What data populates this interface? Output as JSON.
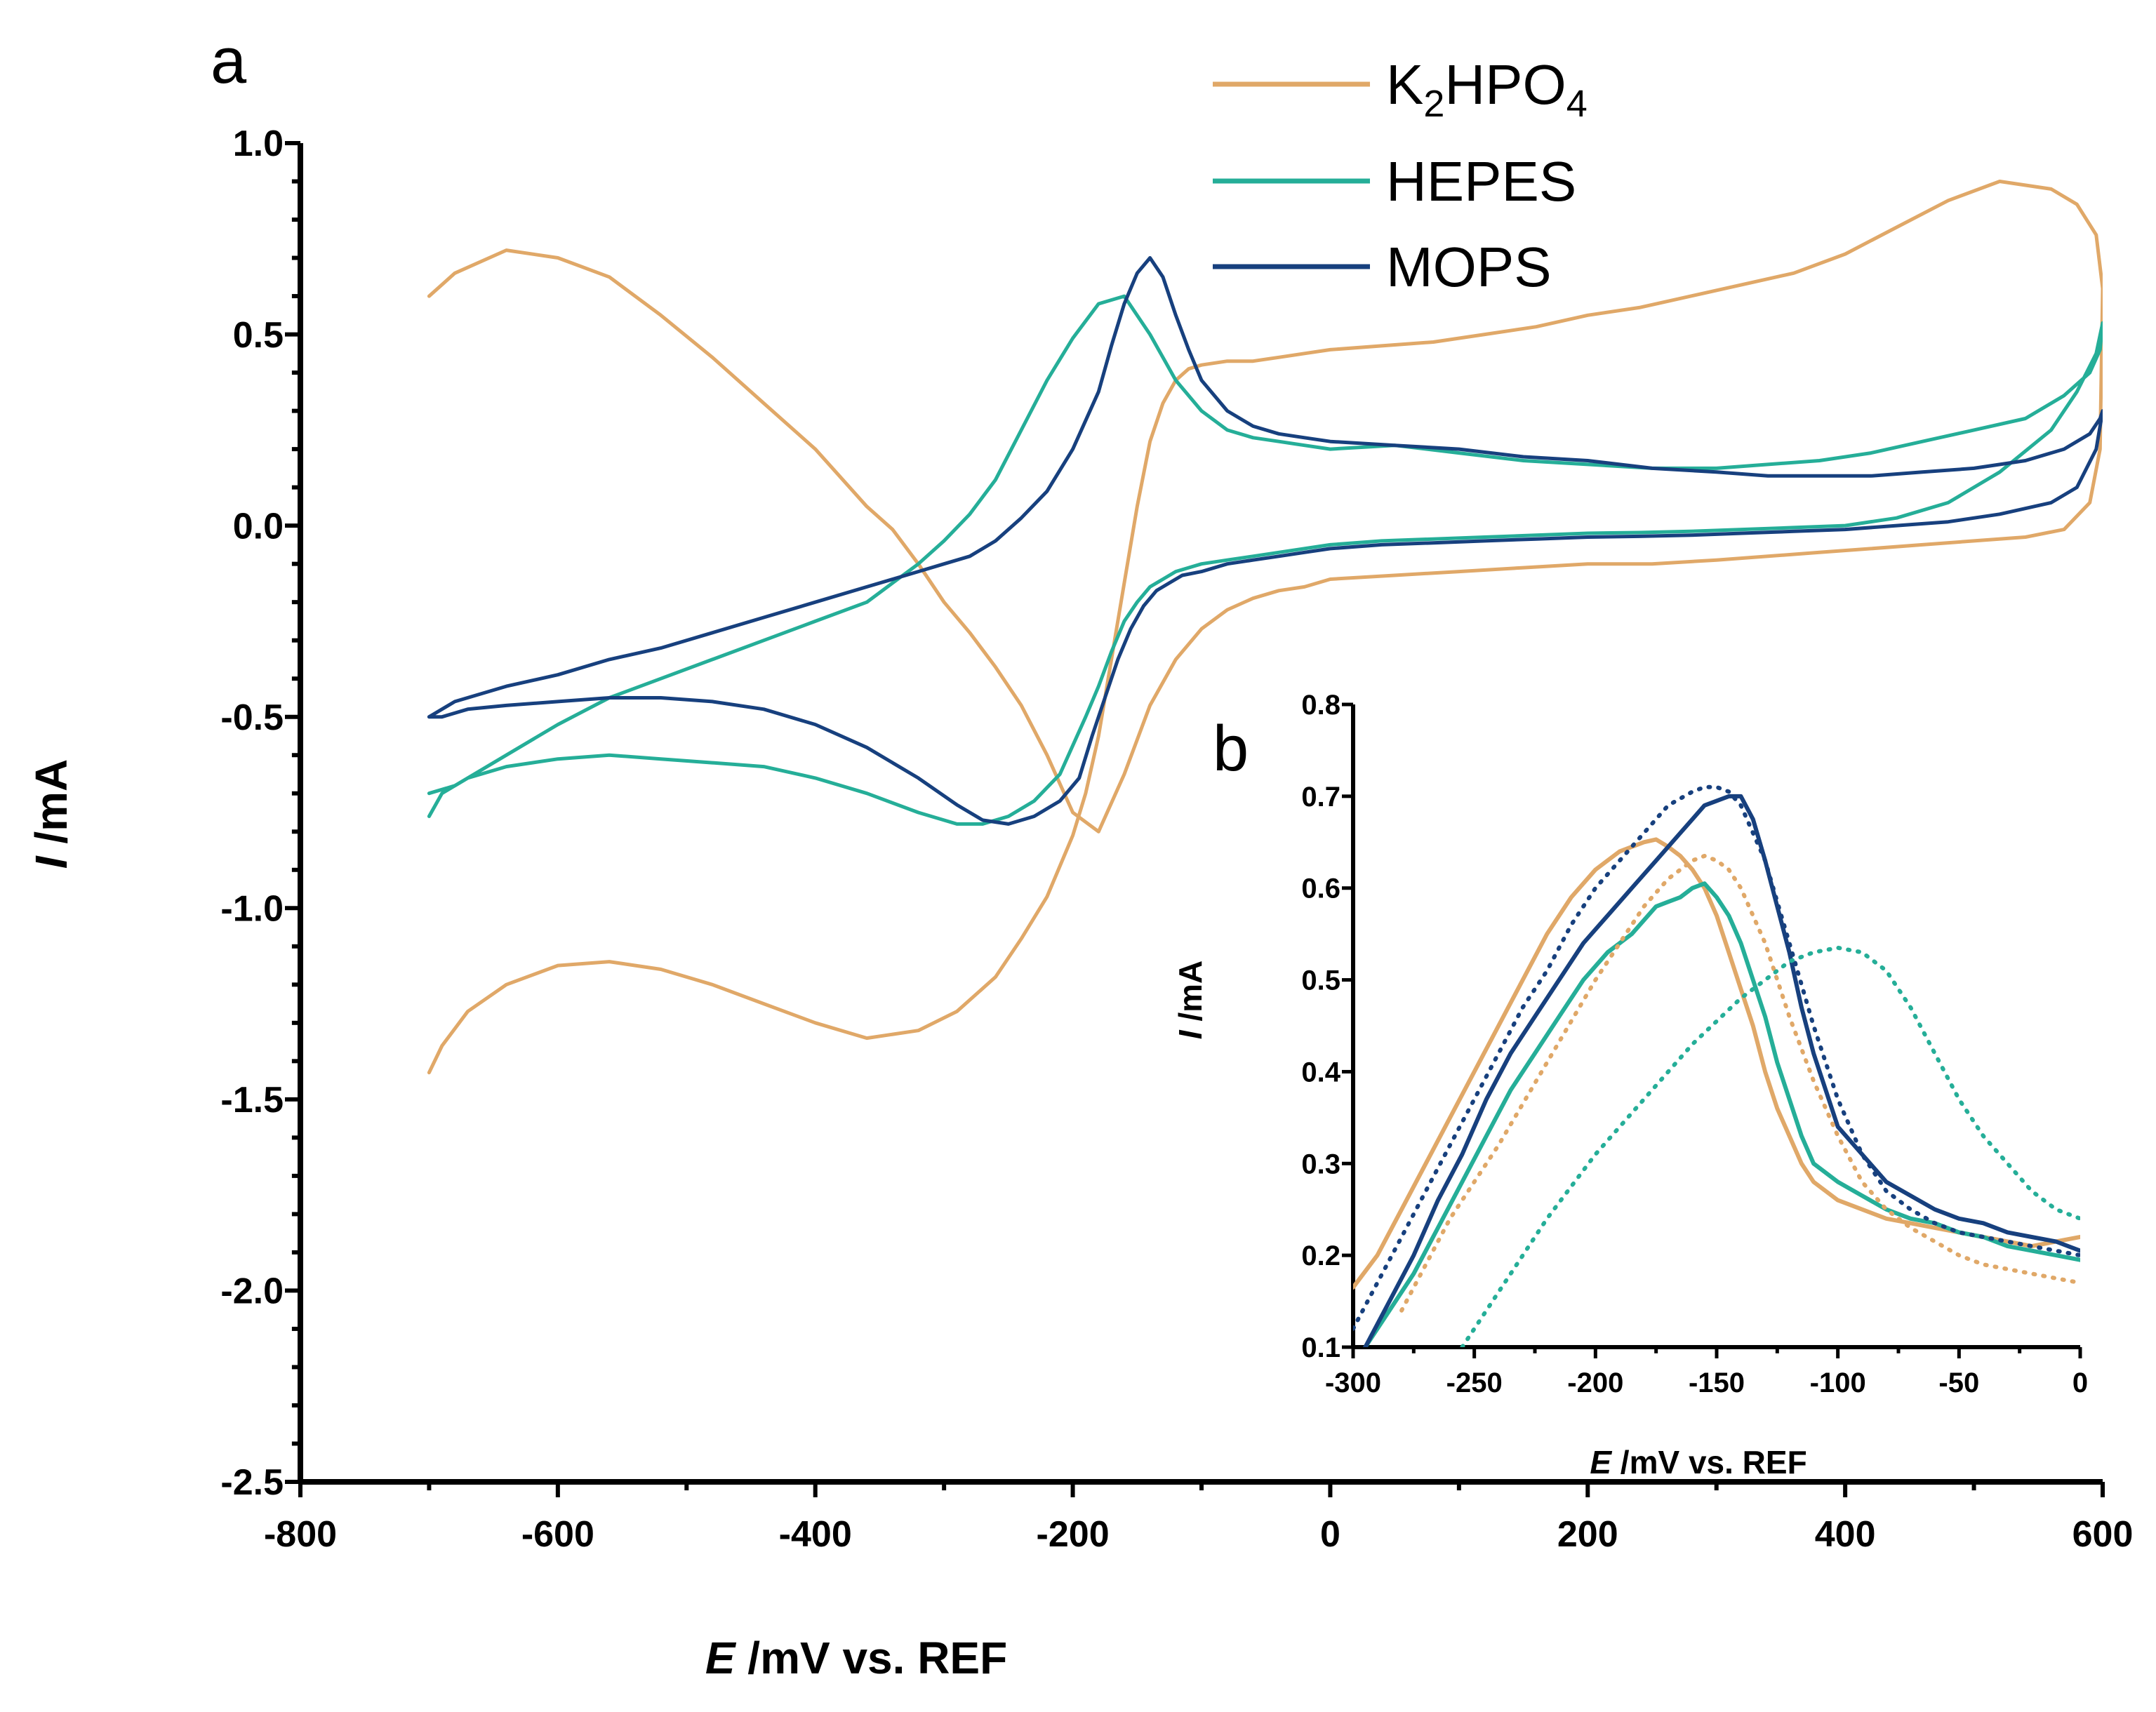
{
  "chart_data": [
    {
      "panel": "a",
      "type": "line",
      "xlabel_italic": "E",
      "xlabel_rest": " /mV vs. REF",
      "ylabel_italic": "I",
      "ylabel_rest": " /mA",
      "xlim": [
        -800,
        600
      ],
      "ylim": [
        -2.5,
        1.0
      ],
      "xticks": [
        "-800",
        "-600",
        "-400",
        "-200",
        "0",
        "200",
        "400",
        "600"
      ],
      "yticks": [
        "1.0",
        "0.5",
        "0.0",
        "-0.5",
        "-1.0",
        "-1.5",
        "-2.0",
        "-2.5"
      ],
      "legend_position": "top-right",
      "legend": [
        {
          "main": "K",
          "sub1": "2",
          "mid": "HPO",
          "sub2": "4"
        },
        {
          "main": "HEPES"
        },
        {
          "main": "MOPS"
        }
      ],
      "series": [
        {
          "name": "K2HPO4",
          "color": "#E0A868",
          "x": [
            -700,
            -690,
            -670,
            -640,
            -600,
            -560,
            -520,
            -480,
            -440,
            -400,
            -360,
            -320,
            -290,
            -260,
            -240,
            -220,
            -200,
            -190,
            -180,
            -170,
            -160,
            -150,
            -140,
            -130,
            -120,
            -110,
            -100,
            -80,
            -60,
            -40,
            -20,
            0,
            40,
            80,
            120,
            160,
            200,
            240,
            280,
            320,
            360,
            400,
            440,
            480,
            520,
            560,
            580,
            595,
            600,
            598,
            590,
            570,
            540,
            500,
            460,
            420,
            380,
            340,
            300,
            250,
            200,
            150,
            100,
            50,
            0,
            -20,
            -40,
            -60,
            -80,
            -100,
            -120,
            -140,
            -160,
            -180,
            -200,
            -220,
            -240,
            -260,
            -280,
            -300,
            -320,
            -340,
            -360,
            -400,
            -440,
            -480,
            -520,
            -560,
            -600,
            -640,
            -680,
            -700
          ],
          "y": [
            -1.43,
            -1.36,
            -1.27,
            -1.2,
            -1.15,
            -1.14,
            -1.16,
            -1.2,
            -1.25,
            -1.3,
            -1.34,
            -1.32,
            -1.27,
            -1.18,
            -1.08,
            -0.97,
            -0.81,
            -0.7,
            -0.55,
            -0.35,
            -0.15,
            0.05,
            0.22,
            0.32,
            0.38,
            0.41,
            0.42,
            0.43,
            0.43,
            0.44,
            0.45,
            0.46,
            0.47,
            0.48,
            0.5,
            0.52,
            0.55,
            0.57,
            0.6,
            0.63,
            0.66,
            0.71,
            0.78,
            0.85,
            0.9,
            0.88,
            0.84,
            0.76,
            0.62,
            0.2,
            0.06,
            -0.01,
            -0.03,
            -0.04,
            -0.05,
            -0.06,
            -0.07,
            -0.08,
            -0.09,
            -0.1,
            -0.1,
            -0.11,
            -0.12,
            -0.13,
            -0.14,
            -0.16,
            -0.17,
            -0.19,
            -0.22,
            -0.27,
            -0.35,
            -0.47,
            -0.65,
            -0.8,
            -0.75,
            -0.6,
            -0.47,
            -0.37,
            -0.28,
            -0.2,
            -0.1,
            -0.01,
            0.05,
            0.2,
            0.32,
            0.44,
            0.55,
            0.65,
            0.7,
            0.72,
            0.66,
            0.6
          ]
        },
        {
          "name": "HEPES",
          "color": "#25AE98",
          "x": [
            -700,
            -690,
            -670,
            -640,
            -600,
            -560,
            -520,
            -480,
            -440,
            -400,
            -360,
            -320,
            -290,
            -270,
            -250,
            -230,
            -210,
            -190,
            -180,
            -170,
            -160,
            -150,
            -140,
            -130,
            -120,
            -110,
            -100,
            -80,
            -60,
            -40,
            -20,
            0,
            40,
            80,
            120,
            160,
            200,
            240,
            280,
            320,
            360,
            400,
            440,
            480,
            520,
            560,
            580,
            595,
            600,
            598,
            590,
            570,
            540,
            500,
            460,
            420,
            380,
            340,
            300,
            250,
            200,
            150,
            100,
            50,
            0,
            -20,
            -40,
            -60,
            -80,
            -100,
            -120,
            -140,
            -160,
            -180,
            -200,
            -220,
            -240,
            -260,
            -280,
            -300,
            -320,
            -340,
            -360,
            -400,
            -440,
            -480,
            -520,
            -560,
            -600,
            -640,
            -680,
            -700
          ],
          "y": [
            -0.76,
            -0.7,
            -0.66,
            -0.63,
            -0.61,
            -0.6,
            -0.61,
            -0.62,
            -0.63,
            -0.66,
            -0.7,
            -0.75,
            -0.78,
            -0.78,
            -0.76,
            -0.72,
            -0.65,
            -0.5,
            -0.42,
            -0.33,
            -0.25,
            -0.2,
            -0.16,
            -0.14,
            -0.12,
            -0.11,
            -0.1,
            -0.09,
            -0.08,
            -0.07,
            -0.06,
            -0.05,
            -0.04,
            -0.035,
            -0.03,
            -0.025,
            -0.02,
            -0.018,
            -0.015,
            -0.01,
            -0.005,
            0.0,
            0.02,
            0.06,
            0.14,
            0.25,
            0.35,
            0.45,
            0.53,
            0.46,
            0.4,
            0.34,
            0.28,
            0.25,
            0.22,
            0.19,
            0.17,
            0.16,
            0.15,
            0.15,
            0.16,
            0.17,
            0.19,
            0.21,
            0.2,
            0.21,
            0.22,
            0.23,
            0.25,
            0.3,
            0.38,
            0.5,
            0.6,
            0.58,
            0.49,
            0.38,
            0.25,
            0.12,
            0.03,
            -0.04,
            -0.1,
            -0.15,
            -0.2,
            -0.25,
            -0.3,
            -0.35,
            -0.4,
            -0.45,
            -0.52,
            -0.6,
            -0.68,
            -0.7
          ]
        },
        {
          "name": "MOPS",
          "color": "#17407E",
          "x": [
            -700,
            -690,
            -670,
            -640,
            -600,
            -560,
            -520,
            -480,
            -440,
            -400,
            -360,
            -320,
            -290,
            -270,
            -250,
            -230,
            -210,
            -195,
            -185,
            -175,
            -165,
            -155,
            -145,
            -135,
            -125,
            -115,
            -100,
            -80,
            -60,
            -40,
            -20,
            0,
            40,
            80,
            120,
            160,
            200,
            240,
            280,
            320,
            360,
            400,
            440,
            480,
            520,
            560,
            580,
            595,
            600,
            598,
            590,
            570,
            540,
            500,
            460,
            420,
            380,
            340,
            300,
            250,
            200,
            150,
            100,
            50,
            0,
            -20,
            -40,
            -60,
            -80,
            -100,
            -110,
            -120,
            -130,
            -140,
            -150,
            -160,
            -170,
            -180,
            -200,
            -220,
            -240,
            -260,
            -280,
            -300,
            -320,
            -340,
            -360,
            -400,
            -440,
            -480,
            -520,
            -560,
            -600,
            -640,
            -680,
            -700
          ],
          "y": [
            -0.5,
            -0.5,
            -0.48,
            -0.47,
            -0.46,
            -0.45,
            -0.45,
            -0.46,
            -0.48,
            -0.52,
            -0.58,
            -0.66,
            -0.73,
            -0.77,
            -0.78,
            -0.76,
            -0.72,
            -0.66,
            -0.55,
            -0.45,
            -0.35,
            -0.27,
            -0.21,
            -0.17,
            -0.15,
            -0.13,
            -0.12,
            -0.1,
            -0.09,
            -0.08,
            -0.07,
            -0.06,
            -0.05,
            -0.045,
            -0.04,
            -0.035,
            -0.03,
            -0.028,
            -0.025,
            -0.02,
            -0.015,
            -0.01,
            0.0,
            0.01,
            0.03,
            0.06,
            0.1,
            0.2,
            0.3,
            0.28,
            0.24,
            0.2,
            0.17,
            0.15,
            0.14,
            0.13,
            0.13,
            0.13,
            0.14,
            0.15,
            0.17,
            0.18,
            0.2,
            0.21,
            0.22,
            0.23,
            0.24,
            0.26,
            0.3,
            0.38,
            0.46,
            0.55,
            0.65,
            0.7,
            0.66,
            0.58,
            0.47,
            0.35,
            0.2,
            0.09,
            0.02,
            -0.04,
            -0.08,
            -0.1,
            -0.12,
            -0.14,
            -0.16,
            -0.2,
            -0.24,
            -0.28,
            -0.32,
            -0.35,
            -0.39,
            -0.42,
            -0.46,
            -0.5
          ]
        }
      ]
    },
    {
      "panel": "b",
      "type": "line",
      "xlabel_italic": "E",
      "xlabel_rest": " /mV vs. REF",
      "ylabel_italic": "I",
      "ylabel_rest": " /mA",
      "xlim": [
        -300,
        0
      ],
      "ylim": [
        0.1,
        0.8
      ],
      "xticks": [
        "-300",
        "-250",
        "-200",
        "-150",
        "-100",
        "-50",
        "0"
      ],
      "yticks": [
        "0.8",
        "0.7",
        "0.6",
        "0.5",
        "0.4",
        "0.3",
        "0.2",
        "0.1"
      ],
      "series": [
        {
          "name": "K2HPO4",
          "color": "#E0A868",
          "style": "solid",
          "x": [
            -300,
            -290,
            -280,
            -270,
            -260,
            -250,
            -240,
            -230,
            -220,
            -210,
            -200,
            -190,
            -180,
            -175,
            -170,
            -165,
            -160,
            -155,
            -150,
            -145,
            -140,
            -135,
            -130,
            -125,
            -120,
            -115,
            -110,
            -100,
            -90,
            -80,
            -70,
            -60,
            -50,
            -40,
            -30,
            -20,
            -10,
            0
          ],
          "y": [
            0.165,
            0.2,
            0.25,
            0.3,
            0.35,
            0.4,
            0.45,
            0.5,
            0.55,
            0.59,
            0.62,
            0.64,
            0.65,
            0.653,
            0.645,
            0.635,
            0.62,
            0.6,
            0.57,
            0.53,
            0.49,
            0.45,
            0.4,
            0.36,
            0.33,
            0.3,
            0.28,
            0.26,
            0.25,
            0.24,
            0.235,
            0.23,
            0.225,
            0.22,
            0.215,
            0.21,
            0.215,
            0.22
          ]
        },
        {
          "name": "HEPES",
          "color": "#25AE98",
          "style": "solid",
          "x": [
            -295,
            -285,
            -275,
            -265,
            -255,
            -245,
            -235,
            -225,
            -215,
            -205,
            -195,
            -185,
            -175,
            -170,
            -165,
            -160,
            -155,
            -150,
            -145,
            -140,
            -135,
            -130,
            -125,
            -120,
            -115,
            -110,
            -100,
            -90,
            -80,
            -70,
            -60,
            -50,
            -40,
            -30,
            -20,
            -10,
            0
          ],
          "y": [
            0.1,
            0.14,
            0.18,
            0.23,
            0.28,
            0.33,
            0.38,
            0.42,
            0.46,
            0.5,
            0.53,
            0.55,
            0.58,
            0.585,
            0.59,
            0.6,
            0.605,
            0.59,
            0.57,
            0.54,
            0.5,
            0.46,
            0.41,
            0.37,
            0.33,
            0.3,
            0.28,
            0.265,
            0.25,
            0.24,
            0.235,
            0.225,
            0.22,
            0.21,
            0.205,
            0.2,
            0.195
          ]
        },
        {
          "name": "MOPS",
          "color": "#17407E",
          "style": "solid",
          "x": [
            -295,
            -285,
            -275,
            -265,
            -255,
            -245,
            -235,
            -225,
            -215,
            -205,
            -195,
            -185,
            -175,
            -165,
            -155,
            -150,
            -145,
            -140,
            -135,
            -130,
            -125,
            -120,
            -115,
            -110,
            -105,
            -100,
            -90,
            -80,
            -70,
            -60,
            -50,
            -40,
            -30,
            -20,
            -10,
            0
          ],
          "y": [
            0.1,
            0.15,
            0.2,
            0.26,
            0.31,
            0.37,
            0.42,
            0.46,
            0.5,
            0.54,
            0.57,
            0.6,
            0.63,
            0.66,
            0.69,
            0.695,
            0.7,
            0.7,
            0.675,
            0.63,
            0.58,
            0.53,
            0.47,
            0.42,
            0.38,
            0.34,
            0.31,
            0.28,
            0.265,
            0.25,
            0.24,
            0.235,
            0.225,
            0.22,
            0.215,
            0.205
          ]
        },
        {
          "name": "K2HPO4 (dotted)",
          "color": "#E0A868",
          "style": "dotted",
          "x": [
            -280,
            -260,
            -240,
            -220,
            -200,
            -180,
            -170,
            -160,
            -155,
            -150,
            -145,
            -140,
            -130,
            -120,
            -110,
            -100,
            -90,
            -80,
            -70,
            -60,
            -50,
            -40,
            -30,
            -20,
            -10,
            0
          ],
          "y": [
            0.14,
            0.24,
            0.32,
            0.41,
            0.5,
            0.58,
            0.61,
            0.63,
            0.635,
            0.63,
            0.62,
            0.6,
            0.54,
            0.46,
            0.39,
            0.33,
            0.28,
            0.25,
            0.23,
            0.215,
            0.2,
            0.19,
            0.185,
            0.18,
            0.175,
            0.17
          ]
        },
        {
          "name": "MOPS (dotted)",
          "color": "#17407E",
          "style": "dotted",
          "x": [
            -300,
            -290,
            -280,
            -270,
            -260,
            -250,
            -240,
            -230,
            -220,
            -210,
            -200,
            -190,
            -180,
            -170,
            -160,
            -155,
            -150,
            -145,
            -140,
            -130,
            -120,
            -110,
            -100,
            -90,
            -80,
            -70,
            -60,
            -50,
            -40,
            -30,
            -20,
            -10,
            0
          ],
          "y": [
            0.12,
            0.17,
            0.22,
            0.27,
            0.32,
            0.37,
            0.42,
            0.47,
            0.51,
            0.56,
            0.6,
            0.63,
            0.66,
            0.69,
            0.705,
            0.71,
            0.71,
            0.705,
            0.69,
            0.63,
            0.54,
            0.45,
            0.37,
            0.31,
            0.27,
            0.25,
            0.235,
            0.225,
            0.22,
            0.215,
            0.21,
            0.205,
            0.2
          ]
        },
        {
          "name": "HEPES (dotted)",
          "color": "#25AE98",
          "style": "dotted",
          "x": [
            -255,
            -240,
            -220,
            -200,
            -180,
            -160,
            -140,
            -130,
            -120,
            -110,
            -100,
            -90,
            -80,
            -70,
            -60,
            -50,
            -40,
            -30,
            -20,
            -10,
            0
          ],
          "y": [
            0.1,
            0.16,
            0.24,
            0.31,
            0.37,
            0.43,
            0.48,
            0.5,
            0.52,
            0.53,
            0.535,
            0.53,
            0.51,
            0.47,
            0.42,
            0.37,
            0.33,
            0.3,
            0.27,
            0.25,
            0.24
          ]
        }
      ]
    }
  ],
  "panel_labels": {
    "a": "a",
    "b": "b"
  }
}
